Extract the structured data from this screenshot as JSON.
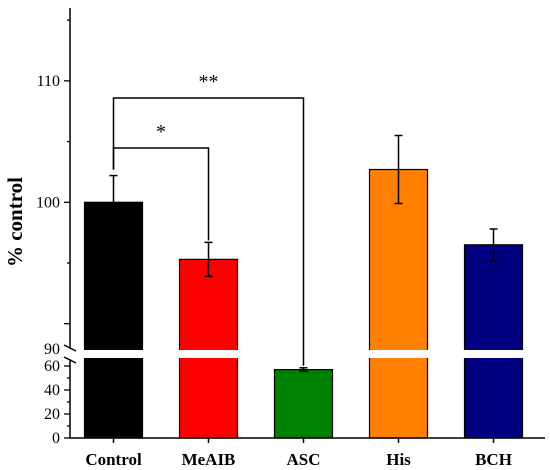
{
  "chart_data": {
    "type": "bar",
    "ylabel": "% control",
    "xlabel": "",
    "categories": [
      "Control",
      "MeAIB",
      "ASC",
      "His",
      "BCH"
    ],
    "values": [
      100,
      95.3,
      57,
      102.7,
      96.5
    ],
    "errors": [
      2.2,
      1.4,
      1.5,
      2.8,
      1.3
    ],
    "colors": [
      "#000000",
      "#ff0000",
      "#008000",
      "#ff8000",
      "#000080"
    ],
    "y_axis_broken": true,
    "y_segments": [
      {
        "range": [
          0,
          65
        ],
        "ticks": [
          0,
          20,
          40,
          60
        ]
      },
      {
        "range": [
          88,
          116
        ],
        "ticks": [
          90,
          100,
          110
        ]
      }
    ],
    "significance": [
      {
        "from": "Control",
        "to": "MeAIB",
        "label": "*"
      },
      {
        "from": "Control",
        "to": "ASC",
        "label": "**"
      }
    ]
  }
}
